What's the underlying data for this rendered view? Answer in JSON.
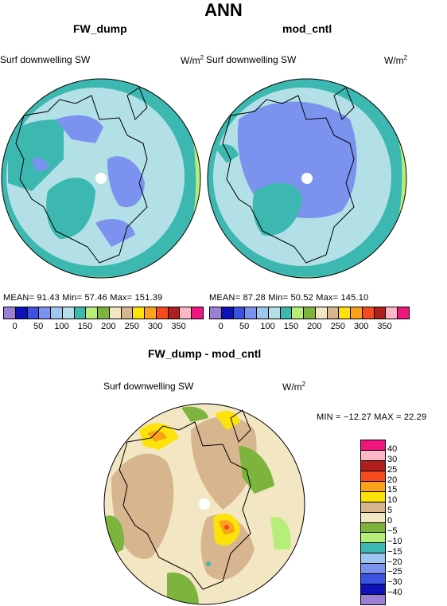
{
  "title": "ANN",
  "panels": [
    {
      "title": "FW_dump",
      "variable": "Surf downwelling SW",
      "units": "W/m",
      "units_exp": "2",
      "stats": "MEAN=  91.43   Min=  57.46   Max=  151.39"
    },
    {
      "title": "mod_cntl",
      "variable": "Surf downwelling SW",
      "units": "W/m",
      "units_exp": "2",
      "stats": "MEAN=  87.28   Min=  50.52   Max=  145.10"
    }
  ],
  "diff_panel": {
    "title": "FW_dump - mod_cntl",
    "variable": "Surf downwelling SW",
    "units": "W/m",
    "units_exp": "2",
    "stats": "MIN = −12.27  MAX =  22.29"
  },
  "colorbar_top": {
    "colors": [
      "#9b7fd6",
      "#0c12b8",
      "#3b53e0",
      "#7b93ee",
      "#9dc7ee",
      "#b2e0e6",
      "#3cb8b0",
      "#b7ee7a",
      "#7cb43e",
      "#f3e6c2",
      "#d7b58e",
      "#fde30a",
      "#fba21a",
      "#f44a1e",
      "#b01e1e",
      "#ffb6c6",
      "#f0157f"
    ],
    "ticks": [
      "0",
      "50",
      "100",
      "150",
      "200",
      "250",
      "300",
      "350"
    ]
  },
  "colorbar_diff": {
    "colors": [
      "#f0157f",
      "#ffb6c6",
      "#b01e1e",
      "#f44a1e",
      "#fba21a",
      "#fde30a",
      "#d7b58e",
      "#f3e6c2",
      "#7cb43e",
      "#b7ee7a",
      "#3cb8b0",
      "#9dc7ee",
      "#7b93ee",
      "#3b53e0",
      "#0c12b8",
      "#9b7fd6"
    ],
    "ticks": [
      "40",
      "30",
      "25",
      "20",
      "15",
      "10",
      "5",
      "0",
      "−5",
      "−10",
      "−15",
      "−20",
      "−25",
      "−30",
      "−40"
    ]
  }
}
